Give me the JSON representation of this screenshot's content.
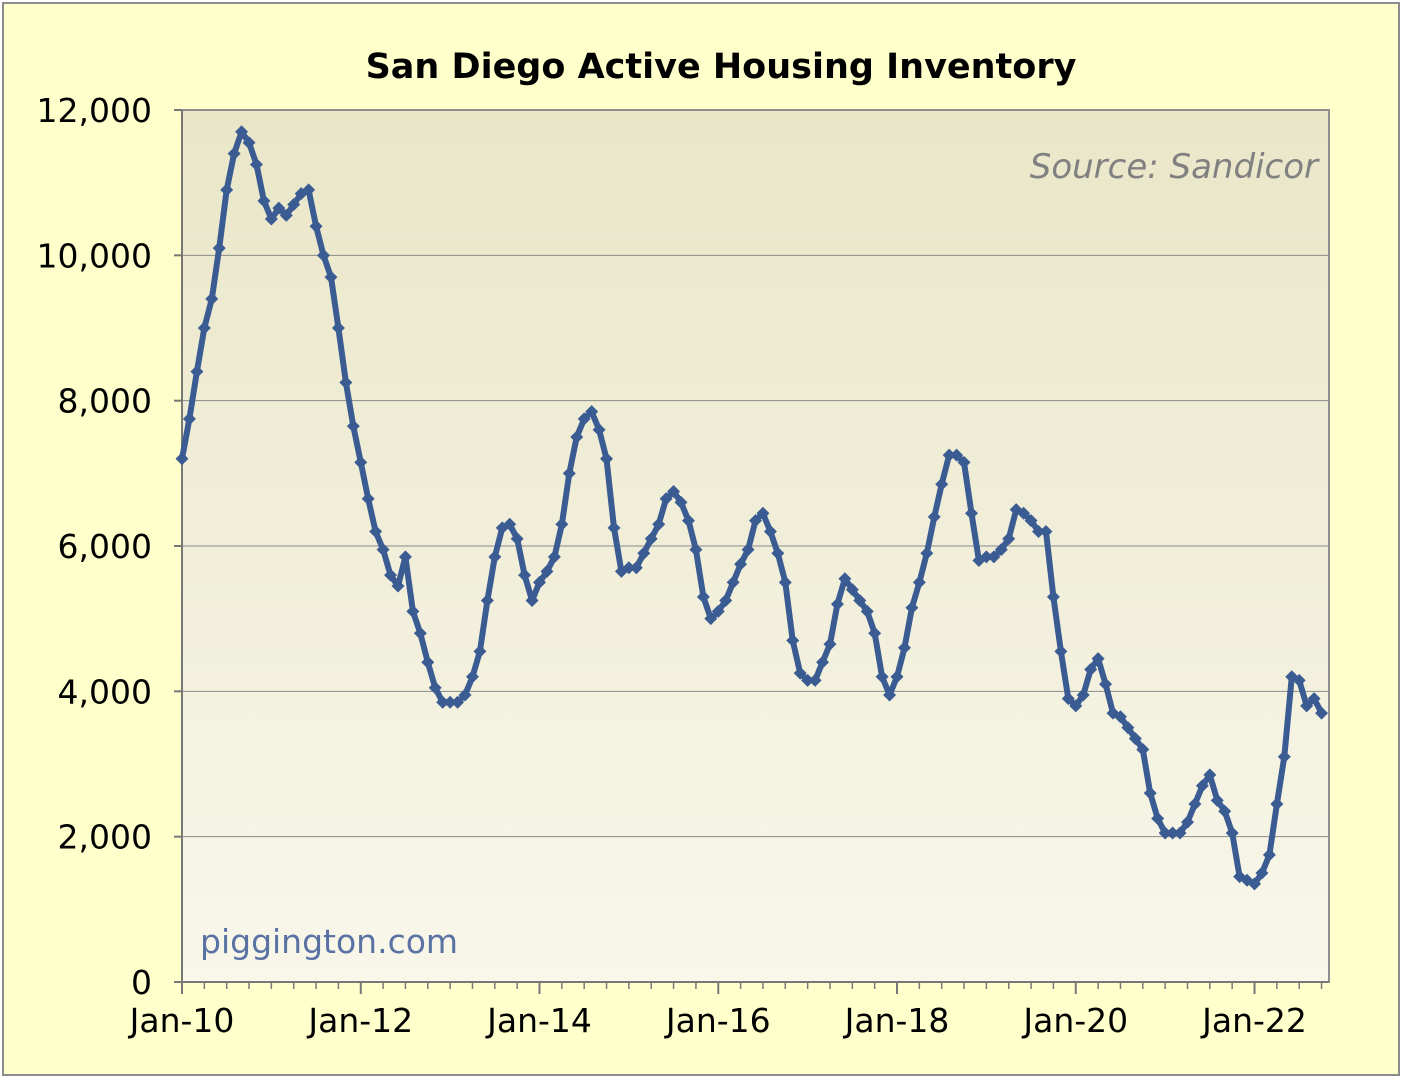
{
  "chart_data": {
    "type": "line",
    "title": "San Diego Active Housing Inventory",
    "source_note": "Source: Sandicor",
    "watermark": "piggington.com",
    "xlabel": "",
    "ylabel": "",
    "x_start": "Jan-10",
    "x_tick_labels": [
      "Jan-10",
      "Jan-12",
      "Jan-14",
      "Jan-16",
      "Jan-18",
      "Jan-20",
      "Jan-22"
    ],
    "ylim": [
      0,
      12000
    ],
    "y_ticks": [
      0,
      2000,
      4000,
      6000,
      8000,
      10000,
      12000
    ],
    "y_tick_labels": [
      "0",
      "2,000",
      "4,000",
      "6,000",
      "8,000",
      "10,000",
      "12,000"
    ],
    "grid": "horizontal",
    "legend": "none",
    "colors": {
      "line": "#3b5c93",
      "plot_bg_top": "#e9e6c8",
      "plot_bg_bottom": "#f8f7ea",
      "frame_bg": "#ffffcc"
    },
    "series": [
      {
        "values": [
          7200,
          7750,
          8400,
          9000,
          9400,
          10100,
          10900,
          11400,
          11700,
          11550,
          11250,
          10750,
          10500,
          10650,
          10550,
          10700,
          10850,
          10900,
          10400,
          10000,
          9700,
          9000,
          8250,
          7650,
          7150,
          6650,
          6200,
          5950,
          5600,
          5450,
          5850,
          5100,
          4800,
          4400,
          4050,
          3850,
          3850,
          3850,
          3950,
          4200,
          4550,
          5250,
          5850,
          6250,
          6300,
          6100,
          5600,
          5250,
          5500,
          5650,
          5850,
          6300,
          7000,
          7500,
          7750,
          7850,
          7600,
          7200,
          6250,
          5650,
          5700,
          5700,
          5900,
          6100,
          6300,
          6650,
          6750,
          6600,
          6350,
          5950,
          5300,
          5000,
          5100,
          5250,
          5500,
          5750,
          5950,
          6350,
          6450,
          6200,
          5900,
          5500,
          4700,
          4250,
          4150,
          4150,
          4400,
          4650,
          5200,
          5550,
          5400,
          5250,
          5100,
          4800,
          4200,
          3950,
          4200,
          4600,
          5150,
          5500,
          5900,
          6400,
          6850,
          7250,
          7250,
          7150,
          6450,
          5800,
          5850,
          5850,
          5950,
          6100,
          6500,
          6450,
          6350,
          6200,
          6200,
          5300,
          4550,
          3900,
          3800,
          3950,
          4300,
          4450,
          4100,
          3700,
          3650,
          3500,
          3350,
          3200,
          2600,
          2250,
          2050,
          2050,
          2050,
          2200,
          2450,
          2700,
          2850,
          2500,
          2350,
          2050,
          1450,
          1400,
          1350,
          1500,
          1750,
          2450,
          3100,
          4200,
          4150,
          3800,
          3900,
          3700
        ]
      }
    ]
  }
}
